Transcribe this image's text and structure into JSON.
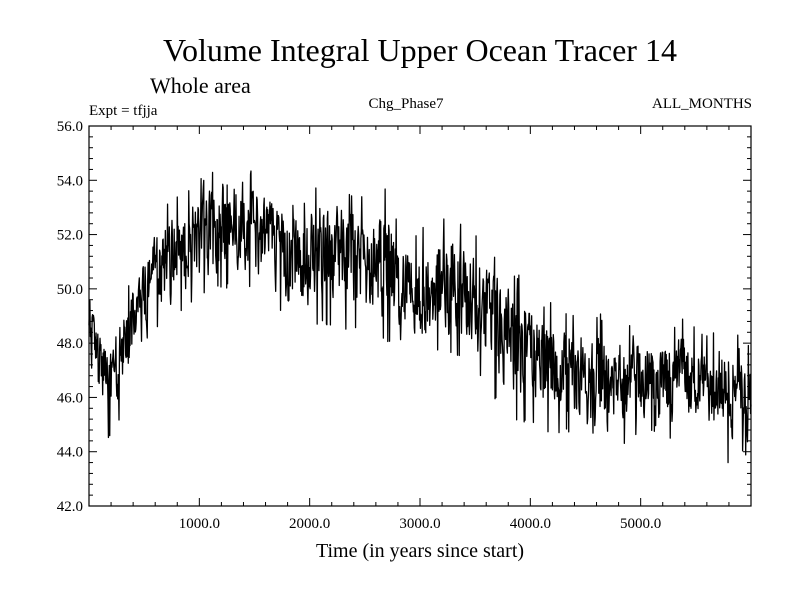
{
  "chart_data": {
    "type": "line",
    "title": "Volume Integral Upper Ocean Tracer 14",
    "subtitle": "Whole area",
    "experiment_label": "Expt = tfjja",
    "center_label": "Chg_Phase7",
    "right_label": "ALL_MONTHS",
    "xlabel": "Time (in years since start)",
    "ylabel": "",
    "xlim": [
      0,
      6000
    ],
    "ylim": [
      42.0,
      56.0
    ],
    "x_ticks": [
      1000,
      2000,
      3000,
      4000,
      5000
    ],
    "x_tick_labels": [
      "1000.0",
      "2000.0",
      "3000.0",
      "4000.0",
      "5000.0"
    ],
    "y_ticks": [
      42,
      44,
      46,
      48,
      50,
      52,
      54,
      56
    ],
    "y_tick_labels": [
      "42.0",
      "44.0",
      "46.0",
      "48.0",
      "50.0",
      "52.0",
      "54.0",
      "56.0"
    ],
    "grid": false,
    "line_color": "#000000",
    "series": [
      {
        "x": [
          0,
          100,
          200,
          300,
          400,
          500,
          600,
          700,
          800,
          900,
          1000,
          1100,
          1200,
          1300,
          1400,
          1500,
          1600,
          1700,
          1800,
          1900,
          2000,
          2100,
          2200,
          2300,
          2400,
          2500,
          2600,
          2700,
          2800,
          2900,
          3000,
          3100,
          3200,
          3300,
          3400,
          3500,
          3600,
          3700,
          3800,
          3900,
          4000,
          4100,
          4200,
          4300,
          4400,
          4500,
          4600,
          4700,
          4800,
          4900,
          5000,
          5100,
          5200,
          5300,
          5400,
          5500,
          5600,
          5700,
          5800,
          5900,
          6000
        ],
        "mean": [
          48.6,
          47.4,
          46.9,
          47.8,
          48.9,
          49.8,
          50.6,
          51.0,
          51.6,
          51.9,
          52.2,
          52.4,
          52.5,
          52.6,
          52.5,
          52.3,
          52.0,
          51.8,
          51.5,
          51.3,
          51.2,
          51.4,
          51.3,
          51.2,
          51.1,
          51.0,
          50.9,
          50.8,
          50.3,
          49.8,
          49.9,
          50.0,
          50.1,
          50.0,
          49.9,
          49.7,
          49.2,
          48.8,
          48.3,
          47.9,
          47.6,
          47.3,
          47.1,
          47.0,
          46.9,
          46.7,
          46.6,
          46.6,
          46.7,
          46.6,
          46.8,
          46.8,
          46.8,
          46.7,
          46.8,
          46.7,
          46.6,
          46.5,
          46.4,
          46.3,
          46.2
        ],
        "upper": [
          50.0,
          48.6,
          48.2,
          49.6,
          50.6,
          51.8,
          52.6,
          53.2,
          53.4,
          53.6,
          54.0,
          54.4,
          54.8,
          54.7,
          54.6,
          54.3,
          53.9,
          53.5,
          53.2,
          53.0,
          53.5,
          54.2,
          53.6,
          53.7,
          53.6,
          53.4,
          53.3,
          53.9,
          52.6,
          52.0,
          52.2,
          52.7,
          52.8,
          52.6,
          52.5,
          52.2,
          51.5,
          51.1,
          50.8,
          50.5,
          50.0,
          49.6,
          49.5,
          49.3,
          49.1,
          48.9,
          49.2,
          48.9,
          49.3,
          48.8,
          48.7,
          48.8,
          48.8,
          48.7,
          49.0,
          48.6,
          48.4,
          48.5,
          48.9,
          48.3,
          48.1
        ],
        "lower": [
          47.8,
          44.2,
          44.5,
          45.1,
          46.6,
          47.4,
          48.3,
          48.6,
          49.0,
          49.3,
          49.7,
          49.8,
          49.9,
          50.0,
          50.0,
          49.9,
          49.6,
          49.3,
          48.7,
          48.5,
          48.4,
          48.6,
          48.6,
          48.4,
          48.4,
          48.5,
          48.3,
          48.0,
          47.3,
          47.4,
          47.5,
          47.6,
          47.6,
          47.5,
          47.3,
          46.9,
          46.5,
          45.8,
          45.4,
          44.9,
          45.1,
          44.6,
          44.7,
          44.7,
          44.6,
          44.2,
          43.8,
          44.0,
          44.1,
          44.4,
          44.5,
          44.6,
          44.4,
          44.5,
          44.6,
          44.4,
          44.3,
          44.2,
          43.3,
          43.9,
          43.6
        ]
      }
    ]
  }
}
